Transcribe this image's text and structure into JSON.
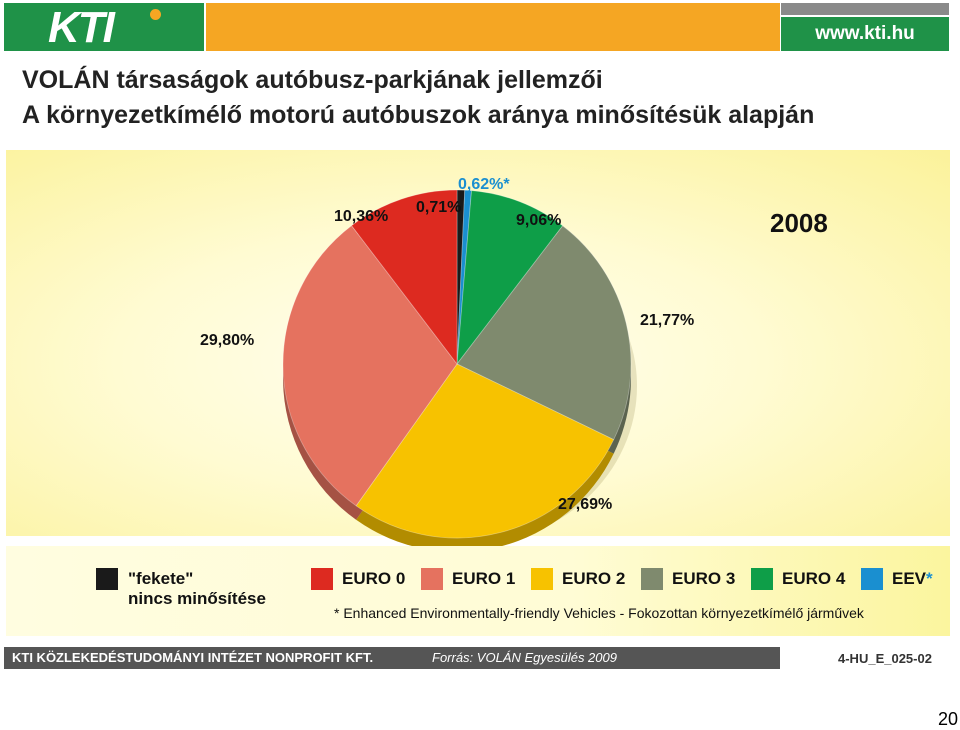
{
  "header": {
    "logo_text": "KTI",
    "website": "www.kti.hu",
    "colors": {
      "green": "#1f9248",
      "orange": "#f5a623",
      "grey": "#8a8a8a"
    }
  },
  "title": {
    "line1": "VOLÁN társaságok autóbusz-parkjának jellemzői",
    "line2": "A környezetkímélő motorú autóbuszok aránya minősítésük alapján"
  },
  "chart_data": {
    "type": "pie",
    "year_label": "2008",
    "slices": [
      {
        "name": "\"fekete\" nincs minősítése",
        "value": 0.71,
        "label": "0,71%",
        "color": "#1a1a1a"
      },
      {
        "name": "EEV*",
        "value": 0.62,
        "label": "0,62%*",
        "color": "#1a8fd0"
      },
      {
        "name": "EURO 4",
        "value": 9.06,
        "label": "9,06%",
        "color": "#0e9e48"
      },
      {
        "name": "EURO 3",
        "value": 21.77,
        "label": "21,77%",
        "color": "#7f8a6e"
      },
      {
        "name": "EURO 2",
        "value": 27.69,
        "label": "27,69%",
        "color": "#f7c200"
      },
      {
        "name": "EURO 1",
        "value": 29.8,
        "label": "29,80%",
        "color": "#e5725f"
      },
      {
        "name": "EURO 0",
        "value": 10.36,
        "label": "10,36%",
        "color": "#dd2a20"
      }
    ],
    "legend": [
      {
        "label": "\"fekete\"",
        "label2": "nincs minősítése",
        "color": "#1a1a1a"
      },
      {
        "label": "EURO 0",
        "color": "#dd2a20"
      },
      {
        "label": "EURO 1",
        "color": "#e5725f"
      },
      {
        "label": "EURO 2",
        "color": "#f7c200"
      },
      {
        "label": "EURO 3",
        "color": "#7f8a6e"
      },
      {
        "label": "EURO 4",
        "color": "#0e9e48"
      },
      {
        "label": "EEV",
        "star": "*",
        "color": "#1a8fd0"
      }
    ],
    "footnote": "* Enhanced Environmentally-friendly Vehicles - Fokozottan környezetkímélő járművek"
  },
  "footer": {
    "institute": "KTI KÖZLEKEDÉSTUDOMÁNYI INTÉZET NONPROFIT KFT.",
    "source": "Forrás: VOLÁN Egyesülés 2009",
    "code": "4-HU_E_025-02"
  },
  "page_number": "20"
}
